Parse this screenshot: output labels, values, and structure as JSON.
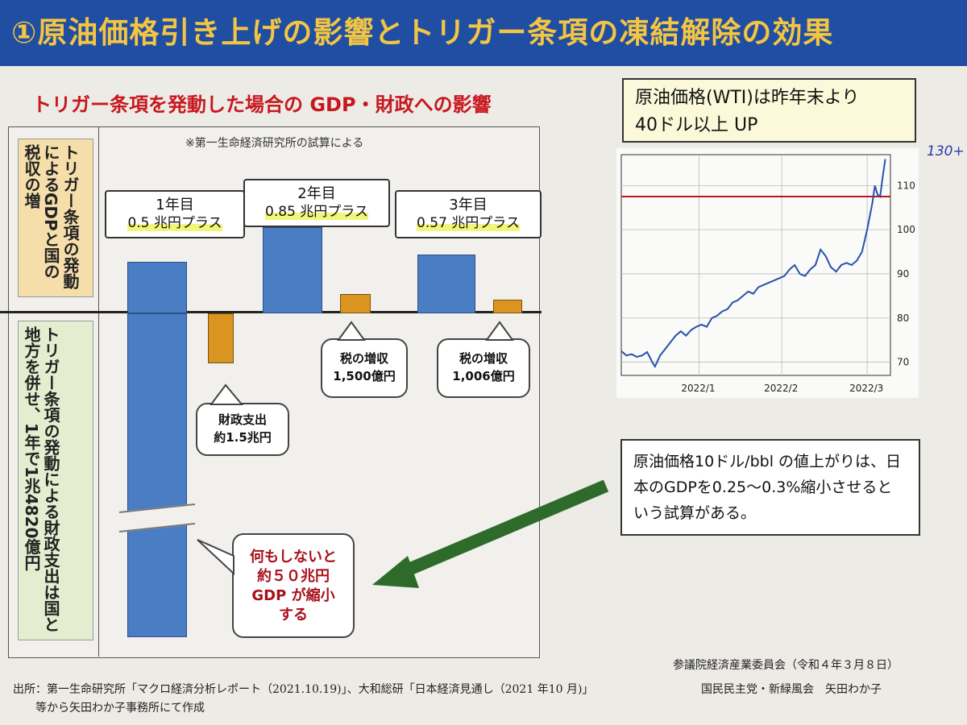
{
  "title": "①原油価格引き上げの影響とトリガー条項の凍結解除の効果",
  "subtitle": "トリガー条項を発動した場合の GDP・財政への影響",
  "note": "※第一生命経済研究所の試算による",
  "left_labels": {
    "upper": "トリガー条項の発動によるGDPと国の税収の増",
    "lower": "トリガー条項の発動による財政支出は国と地方を併せ、1年で1兆4820億円"
  },
  "callouts": [
    {
      "year": "1年目",
      "value": "0.5 兆円プラス"
    },
    {
      "year": "2年目",
      "value": "0.85 兆円プラス"
    },
    {
      "year": "3年目",
      "value": "0.57 兆円プラス"
    }
  ],
  "bubbles": {
    "fiscal": "財政支出\n約1.5兆円",
    "tax2": "税の増収\n1,500億円",
    "tax3": "税の増収\n1,006億円",
    "nothing": "何もしないと\n約５０兆円\nGDP が縮小\nする"
  },
  "wti_box": {
    "line1": "原油価格(WTI)は昨年末より",
    "line2": "40ドル以上 UP"
  },
  "handwritten": "130+",
  "note_box": "原油価格10ドル/bbl の値上がりは、日本のGDPを0.25～0.3%縮小させるという試算がある。",
  "footer": {
    "source1": "出所：第一生命研究所「マクロ経済分析レポート（2021.10.19)」、大和総研「日本経済見通し（2021 年10 月)」",
    "source2": "等から矢田わか子事務所にて作成",
    "committee": "参議院経済産業委員会（令和４年３月８日）",
    "speaker": "国民民主党・新緑風会　矢田わか子"
  },
  "colors": {
    "title_bar": "#1f4ea3",
    "title_text": "#f4c542",
    "bar_blue": "#4a7dc4",
    "bar_orange": "#d9951f",
    "subtitle": "#c8171e",
    "arrow": "#2e6b2a",
    "wti_line": "#2653a8",
    "ref_line": "#c0141c"
  },
  "chart_data": [
    {
      "type": "bar",
      "title": "",
      "series": [
        {
          "name": "",
          "values": [
            0.5,
            -1.5,
            0.85,
            0.15,
            0.57,
            0.1006
          ],
          "categories": [
            "1年目 GDP",
            "1年目 財政支出",
            "2年目 GDP",
            "2年目 税収",
            "3年目 GDP",
            "3年目 税収"
          ]
        }
      ],
      "units": "兆円"
    },
    {
      "type": "line",
      "title": "",
      "x_ticks": [
        "2022/1",
        "2022/2",
        "2022/3"
      ],
      "y_ticks": [
        70,
        80,
        90,
        100,
        110
      ],
      "ylim": [
        67,
        117
      ],
      "reference_line": 107.5,
      "series": [
        {
          "name": "",
          "points": [
            [
              0,
              72.5
            ],
            [
              2,
              71.5
            ],
            [
              4,
              71.8
            ],
            [
              6,
              71.2
            ],
            [
              8,
              71.5
            ],
            [
              10,
              72.3
            ],
            [
              12,
              70
            ],
            [
              13,
              69
            ],
            [
              15,
              71.5
            ],
            [
              17,
              73
            ],
            [
              19,
              74.5
            ],
            [
              21,
              76
            ],
            [
              23,
              77
            ],
            [
              25,
              76
            ],
            [
              27,
              77.3
            ],
            [
              29,
              78
            ],
            [
              31,
              78.5
            ],
            [
              33,
              78
            ],
            [
              35,
              80
            ],
            [
              37,
              80.5
            ],
            [
              39,
              81.5
            ],
            [
              41,
              82
            ],
            [
              43,
              83.5
            ],
            [
              45,
              84
            ],
            [
              47,
              85
            ],
            [
              49,
              86
            ],
            [
              51,
              85.5
            ],
            [
              53,
              87
            ],
            [
              55,
              87.5
            ],
            [
              57,
              88
            ],
            [
              59,
              88.5
            ],
            [
              61,
              89
            ],
            [
              63,
              89.5
            ],
            [
              65,
              91
            ],
            [
              67,
              92
            ],
            [
              69,
              90
            ],
            [
              71,
              89.5
            ],
            [
              73,
              91
            ],
            [
              75,
              92
            ],
            [
              77,
              95.5
            ],
            [
              79,
              94
            ],
            [
              81,
              91.5
            ],
            [
              83,
              90.5
            ],
            [
              85,
              92
            ],
            [
              87,
              92.5
            ],
            [
              89,
              92
            ],
            [
              91,
              93
            ],
            [
              93,
              95
            ],
            [
              95,
              100
            ],
            [
              97,
              106
            ],
            [
              98,
              110
            ],
            [
              99,
              108
            ],
            [
              100,
              107.5
            ],
            [
              101,
              112
            ],
            [
              102,
              116
            ]
          ]
        }
      ]
    }
  ]
}
